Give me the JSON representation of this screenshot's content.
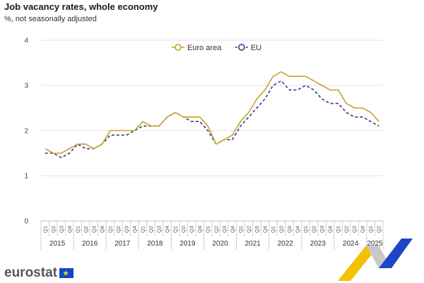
{
  "header": {
    "title": "Job vacancy rates, whole economy",
    "subtitle": "%, not seasonally adjusted"
  },
  "brand": {
    "logo_text": "eurostat"
  },
  "chart_data": {
    "type": "line",
    "title": "Job vacancy rates, whole economy",
    "subtitle": "%, not seasonally adjusted",
    "ylim": [
      0,
      4
    ],
    "yticks": [
      0,
      1,
      2,
      3,
      4
    ],
    "grid": true,
    "legend_position": "top-center",
    "years": [
      "2015",
      "2016",
      "2017",
      "2018",
      "2019",
      "2020",
      "2021",
      "2022",
      "2023",
      "2024",
      "2025"
    ],
    "quarters_per_year": [
      4,
      4,
      4,
      4,
      4,
      4,
      4,
      4,
      4,
      4,
      2
    ],
    "quarter_labels": [
      "Q1",
      "Q2",
      "Q3",
      "Q4"
    ],
    "series": [
      {
        "name": "Euro area",
        "color": "#c9a227",
        "style": "solid",
        "values": [
          1.6,
          1.5,
          1.5,
          1.6,
          1.7,
          1.7,
          1.6,
          1.7,
          2.0,
          2.0,
          2.0,
          2.0,
          2.2,
          2.1,
          2.1,
          2.3,
          2.4,
          2.3,
          2.3,
          2.3,
          2.1,
          1.7,
          1.8,
          1.9,
          2.2,
          2.4,
          2.7,
          2.9,
          3.2,
          3.3,
          3.2,
          3.2,
          3.2,
          3.1,
          3.0,
          2.9,
          2.9,
          2.6,
          2.5,
          2.5,
          2.4,
          2.2
        ]
      },
      {
        "name": "EU",
        "color": "#2e3a87",
        "style": "dashed",
        "values": [
          1.5,
          1.5,
          1.4,
          1.5,
          1.7,
          1.6,
          1.6,
          1.7,
          1.9,
          1.9,
          1.9,
          2.0,
          2.1,
          2.1,
          2.1,
          2.3,
          2.4,
          2.3,
          2.2,
          2.2,
          2.0,
          1.7,
          1.8,
          1.8,
          2.1,
          2.3,
          2.5,
          2.7,
          3.0,
          3.1,
          2.9,
          2.9,
          3.0,
          2.9,
          2.7,
          2.6,
          2.6,
          2.4,
          2.3,
          2.3,
          2.2,
          2.1
        ]
      }
    ]
  }
}
